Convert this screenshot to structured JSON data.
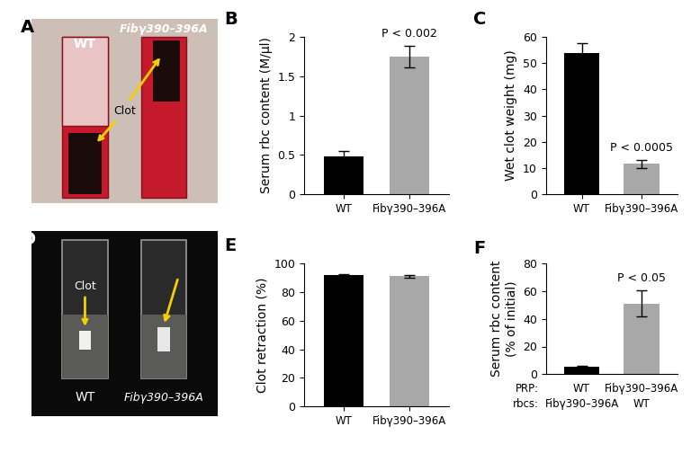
{
  "chart_data": [
    {
      "type": "bar",
      "title": "B",
      "categories": [
        "WT",
        "Fibγ390–396A"
      ],
      "values": [
        0.48,
        1.75
      ],
      "errors": [
        0.07,
        0.14
      ],
      "colors": [
        "#000000",
        "#a8a8a8"
      ],
      "ylabel": "Serum rbc content (M/µl)",
      "ylim": [
        0,
        2
      ],
      "yticks": [
        0,
        0.5,
        1,
        1.5,
        2
      ],
      "annotations": [
        null,
        "P < 0.002"
      ]
    },
    {
      "type": "bar",
      "title": "C",
      "categories": [
        "WT",
        "Fibγ390–396A"
      ],
      "values": [
        54,
        11.5
      ],
      "errors": [
        3.5,
        1.5
      ],
      "colors": [
        "#000000",
        "#a8a8a8"
      ],
      "ylabel": "Wet clot weight (mg)",
      "ylim": [
        0,
        60
      ],
      "yticks": [
        0,
        10,
        20,
        30,
        40,
        50,
        60
      ],
      "annotations": [
        null,
        "P < 0.0005"
      ]
    },
    {
      "type": "bar",
      "title": "E",
      "categories": [
        "WT",
        "Fibγ390–396A"
      ],
      "values": [
        92,
        91
      ],
      "errors": [
        0.7,
        1.0
      ],
      "colors": [
        "#000000",
        "#a8a8a8"
      ],
      "ylabel": "Clot retraction (%)",
      "ylim": [
        0,
        100
      ],
      "yticks": [
        0,
        20,
        40,
        60,
        80,
        100
      ],
      "annotations": [
        null,
        null
      ]
    },
    {
      "type": "bar",
      "title": "F",
      "categories": [
        null,
        null
      ],
      "values": [
        5.5,
        51
      ],
      "errors": [
        0.7,
        9.5
      ],
      "colors": [
        "#000000",
        "#a8a8a8"
      ],
      "ylabel": "Serum rbc content\n(% of initial)",
      "ylim": [
        0,
        80
      ],
      "yticks": [
        0,
        20,
        40,
        60,
        80
      ],
      "annotations": [
        null,
        "P < 0.05"
      ],
      "x_rows": [
        {
          "name": "PRP:",
          "labels": [
            "WT",
            "Fibγ390–396A"
          ]
        },
        {
          "name": "rbcs:",
          "labels": [
            "Fibγ390–396A",
            "WT"
          ]
        }
      ]
    }
  ],
  "images": [
    {
      "title": "A",
      "labels": [
        "WT",
        "Fibγ390–396A"
      ],
      "annotation": "Clot"
    },
    {
      "title": "D",
      "labels": [
        "WT",
        "Fibγ390–396A"
      ],
      "annotation": "Clot"
    }
  ]
}
